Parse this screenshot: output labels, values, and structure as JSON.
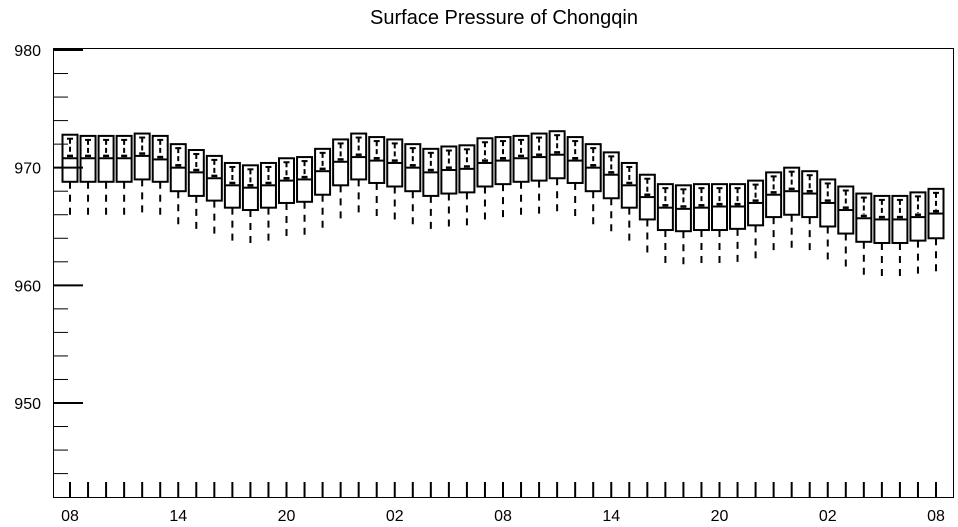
{
  "chart_data": {
    "type": "box",
    "title": "Surface Pressure of Chongqin",
    "xlabel": "",
    "ylabel": "",
    "ylim": [
      941.5,
      980
    ],
    "y_ticks": [
      950,
      960,
      970,
      980
    ],
    "x_range": [
      0,
      48
    ],
    "x_ticks": [
      {
        "x": 0,
        "label": "08"
      },
      {
        "x": 6,
        "label": "14"
      },
      {
        "x": 12,
        "label": "20"
      },
      {
        "x": 18,
        "label": "02"
      },
      {
        "x": 24,
        "label": "08"
      },
      {
        "x": 30,
        "label": "14"
      },
      {
        "x": 36,
        "label": "20"
      },
      {
        "x": 42,
        "label": "02"
      },
      {
        "x": 48,
        "label": "08"
      }
    ],
    "grid": false,
    "legend": "none",
    "boxes": [
      {
        "x": 0,
        "whisker_low": 965.8,
        "q1": 968.8,
        "median": 970.8,
        "mean": 971.0,
        "q3": 972.8,
        "whisker_high": 972.8
      },
      {
        "x": 1,
        "whisker_low": 965.8,
        "q1": 968.8,
        "median": 970.8,
        "mean": 971.0,
        "q3": 972.7,
        "whisker_high": 972.7
      },
      {
        "x": 2,
        "whisker_low": 965.7,
        "q1": 968.8,
        "median": 970.8,
        "mean": 971.0,
        "q3": 972.7,
        "whisker_high": 972.7
      },
      {
        "x": 3,
        "whisker_low": 965.7,
        "q1": 968.8,
        "median": 970.8,
        "mean": 971.0,
        "q3": 972.7,
        "whisker_high": 972.7
      },
      {
        "x": 4,
        "whisker_low": 965.8,
        "q1": 969.0,
        "median": 971.0,
        "mean": 971.2,
        "q3": 972.9,
        "whisker_high": 972.9
      },
      {
        "x": 5,
        "whisker_low": 965.6,
        "q1": 968.8,
        "median": 970.7,
        "mean": 970.9,
        "q3": 972.7,
        "whisker_high": 972.7
      },
      {
        "x": 6,
        "whisker_low": 965.0,
        "q1": 968.0,
        "median": 970.0,
        "mean": 970.2,
        "q3": 972.0,
        "whisker_high": 972.0
      },
      {
        "x": 7,
        "whisker_low": 964.5,
        "q1": 967.6,
        "median": 969.6,
        "mean": 969.8,
        "q3": 971.5,
        "whisker_high": 971.5
      },
      {
        "x": 8,
        "whisker_low": 964.0,
        "q1": 967.2,
        "median": 969.1,
        "mean": 969.3,
        "q3": 971.0,
        "whisker_high": 971.0
      },
      {
        "x": 9,
        "whisker_low": 963.5,
        "q1": 966.6,
        "median": 968.5,
        "mean": 968.7,
        "q3": 970.4,
        "whisker_high": 970.4
      },
      {
        "x": 10,
        "whisker_low": 963.3,
        "q1": 966.4,
        "median": 968.3,
        "mean": 968.5,
        "q3": 970.2,
        "whisker_high": 970.2
      },
      {
        "x": 11,
        "whisker_low": 963.5,
        "q1": 966.6,
        "median": 968.5,
        "mean": 968.7,
        "q3": 970.4,
        "whisker_high": 970.4
      },
      {
        "x": 12,
        "whisker_low": 963.9,
        "q1": 967.0,
        "median": 968.9,
        "mean": 969.1,
        "q3": 970.8,
        "whisker_high": 970.8
      },
      {
        "x": 13,
        "whisker_low": 964.0,
        "q1": 967.1,
        "median": 969.0,
        "mean": 969.2,
        "q3": 970.9,
        "whisker_high": 970.9
      },
      {
        "x": 14,
        "whisker_low": 964.6,
        "q1": 967.7,
        "median": 969.7,
        "mean": 969.9,
        "q3": 971.6,
        "whisker_high": 971.6
      },
      {
        "x": 15,
        "whisker_low": 965.4,
        "q1": 968.5,
        "median": 970.5,
        "mean": 970.7,
        "q3": 972.4,
        "whisker_high": 972.4
      },
      {
        "x": 16,
        "whisker_low": 965.9,
        "q1": 969.0,
        "median": 970.9,
        "mean": 971.1,
        "q3": 972.9,
        "whisker_high": 972.9
      },
      {
        "x": 17,
        "whisker_low": 965.6,
        "q1": 968.7,
        "median": 970.6,
        "mean": 970.8,
        "q3": 972.6,
        "whisker_high": 972.6
      },
      {
        "x": 18,
        "whisker_low": 965.4,
        "q1": 968.4,
        "median": 970.4,
        "mean": 970.6,
        "q3": 972.4,
        "whisker_high": 972.4
      },
      {
        "x": 19,
        "whisker_low": 965.0,
        "q1": 968.0,
        "median": 970.0,
        "mean": 970.2,
        "q3": 972.0,
        "whisker_high": 972.0
      },
      {
        "x": 20,
        "whisker_low": 964.5,
        "q1": 967.6,
        "median": 969.6,
        "mean": 969.8,
        "q3": 971.6,
        "whisker_high": 971.6
      },
      {
        "x": 21,
        "whisker_low": 964.7,
        "q1": 967.8,
        "median": 969.8,
        "mean": 970.0,
        "q3": 971.8,
        "whisker_high": 971.8
      },
      {
        "x": 22,
        "whisker_low": 964.8,
        "q1": 967.9,
        "median": 969.9,
        "mean": 970.1,
        "q3": 971.9,
        "whisker_high": 971.9
      },
      {
        "x": 23,
        "whisker_low": 965.3,
        "q1": 968.4,
        "median": 970.4,
        "mean": 970.6,
        "q3": 972.5,
        "whisker_high": 972.5
      },
      {
        "x": 24,
        "whisker_low": 965.5,
        "q1": 968.6,
        "median": 970.6,
        "mean": 970.8,
        "q3": 972.6,
        "whisker_high": 972.6
      },
      {
        "x": 25,
        "whisker_low": 965.8,
        "q1": 968.8,
        "median": 970.8,
        "mean": 971.0,
        "q3": 972.7,
        "whisker_high": 972.7
      },
      {
        "x": 26,
        "whisker_low": 965.9,
        "q1": 968.9,
        "median": 970.9,
        "mean": 971.1,
        "q3": 972.9,
        "whisker_high": 972.9
      },
      {
        "x": 27,
        "whisker_low": 966.0,
        "q1": 969.1,
        "median": 971.1,
        "mean": 971.3,
        "q3": 973.1,
        "whisker_high": 973.1
      },
      {
        "x": 28,
        "whisker_low": 965.6,
        "q1": 968.7,
        "median": 970.6,
        "mean": 970.8,
        "q3": 972.6,
        "whisker_high": 972.6
      },
      {
        "x": 29,
        "whisker_low": 965.0,
        "q1": 968.0,
        "median": 970.0,
        "mean": 970.2,
        "q3": 972.0,
        "whisker_high": 972.0
      },
      {
        "x": 30,
        "whisker_low": 964.4,
        "q1": 967.4,
        "median": 969.4,
        "mean": 969.6,
        "q3": 971.3,
        "whisker_high": 971.3
      },
      {
        "x": 31,
        "whisker_low": 963.5,
        "q1": 966.6,
        "median": 968.5,
        "mean": 968.7,
        "q3": 970.4,
        "whisker_high": 970.4
      },
      {
        "x": 32,
        "whisker_low": 962.5,
        "q1": 965.6,
        "median": 967.5,
        "mean": 967.7,
        "q3": 969.4,
        "whisker_high": 969.4
      },
      {
        "x": 33,
        "whisker_low": 961.6,
        "q1": 964.7,
        "median": 966.6,
        "mean": 966.8,
        "q3": 968.6,
        "whisker_high": 968.6
      },
      {
        "x": 34,
        "whisker_low": 961.5,
        "q1": 964.6,
        "median": 966.5,
        "mean": 966.7,
        "q3": 968.5,
        "whisker_high": 968.5
      },
      {
        "x": 35,
        "whisker_low": 961.6,
        "q1": 964.7,
        "median": 966.6,
        "mean": 966.8,
        "q3": 968.6,
        "whisker_high": 968.6
      },
      {
        "x": 36,
        "whisker_low": 961.7,
        "q1": 964.7,
        "median": 966.7,
        "mean": 966.9,
        "q3": 968.6,
        "whisker_high": 968.6
      },
      {
        "x": 37,
        "whisker_low": 961.8,
        "q1": 964.8,
        "median": 966.7,
        "mean": 966.9,
        "q3": 968.6,
        "whisker_high": 968.6
      },
      {
        "x": 38,
        "whisker_low": 962.1,
        "q1": 965.1,
        "median": 967.0,
        "mean": 967.2,
        "q3": 968.9,
        "whisker_high": 968.9
      },
      {
        "x": 39,
        "whisker_low": 962.7,
        "q1": 965.8,
        "median": 967.7,
        "mean": 967.9,
        "q3": 969.6,
        "whisker_high": 969.6
      },
      {
        "x": 40,
        "whisker_low": 962.9,
        "q1": 966.0,
        "median": 968.0,
        "mean": 968.2,
        "q3": 970.0,
        "whisker_high": 970.0
      },
      {
        "x": 41,
        "whisker_low": 962.7,
        "q1": 965.8,
        "median": 967.8,
        "mean": 968.0,
        "q3": 969.7,
        "whisker_high": 969.7
      },
      {
        "x": 42,
        "whisker_low": 962.2,
        "q1": 965.0,
        "median": 967.0,
        "mean": 967.2,
        "q3": 969.0,
        "whisker_high": 969.0
      },
      {
        "x": 43,
        "whisker_low": 961.4,
        "q1": 964.4,
        "median": 966.4,
        "mean": 966.6,
        "q3": 968.4,
        "whisker_high": 968.4
      },
      {
        "x": 44,
        "whisker_low": 960.7,
        "q1": 963.7,
        "median": 965.7,
        "mean": 965.9,
        "q3": 967.8,
        "whisker_high": 967.8
      },
      {
        "x": 45,
        "whisker_low": 960.6,
        "q1": 963.6,
        "median": 965.6,
        "mean": 965.8,
        "q3": 967.6,
        "whisker_high": 967.6
      },
      {
        "x": 46,
        "whisker_low": 960.6,
        "q1": 963.6,
        "median": 965.6,
        "mean": 965.8,
        "q3": 967.6,
        "whisker_high": 967.6
      },
      {
        "x": 47,
        "whisker_low": 960.8,
        "q1": 963.8,
        "median": 965.8,
        "mean": 966.0,
        "q3": 967.9,
        "whisker_high": 967.9
      },
      {
        "x": 48,
        "whisker_low": 961.0,
        "q1": 964.0,
        "median": 966.1,
        "mean": 966.3,
        "q3": 968.2,
        "whisker_high": 968.2
      }
    ]
  }
}
